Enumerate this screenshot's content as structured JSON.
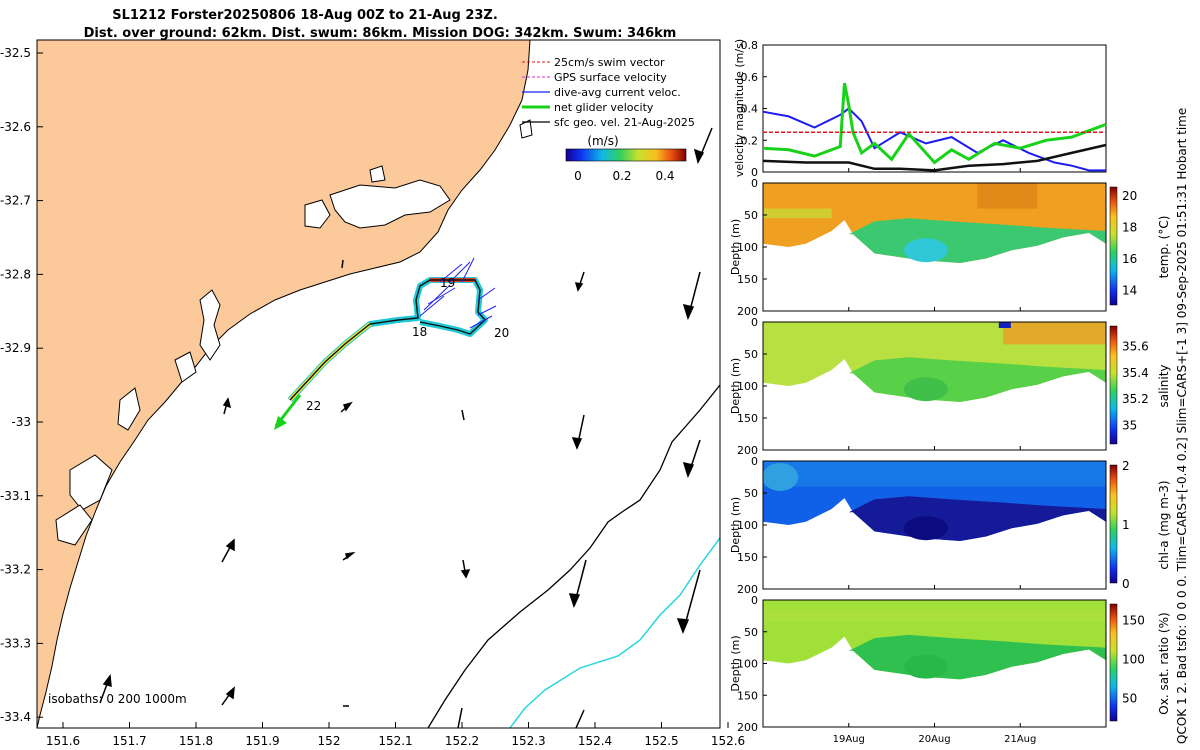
{
  "title": {
    "line1": "SL1212 Forster20250806 18-Aug 00Z to 21-Aug 23Z.",
    "line2": "Dist. over ground: 62km. Dist. swum: 86km. Mission DOG: 342km. Swum: 346km"
  },
  "side_text": "QCOK 1  2. Bad tsfo: 0  0  0  0. Tlim=CARS+[-0.4 0.2] Slim=CARS+[-1 3] 09-Sep-2025 01:51:31 Hobart time",
  "colors": {
    "land": "#fbc99a",
    "coast": "#000000",
    "track_outline": "#21c9d6",
    "track_line": "#000000",
    "arrow": "#000000"
  },
  "map": {
    "x_ticks": [
      "151.6",
      "151.7",
      "151.8",
      "151.9",
      "152",
      "152.1",
      "152.2",
      "152.3",
      "152.4",
      "152.5",
      "152.6"
    ],
    "y_ticks": [
      "-32.5",
      "-32.6",
      "-32.7",
      "-32.8",
      "-32.9",
      "-33",
      "-33.1",
      "-33.2",
      "-33.3",
      "-33.4"
    ],
    "legend": [
      {
        "label": "25cm/s swim vector",
        "color": "#e8121a"
      },
      {
        "label": "GPS surface velocity",
        "color": "#e52ad6"
      },
      {
        "label": "dive-avg current veloc.",
        "color": "#1d1df0"
      },
      {
        "label": "net glider velocity",
        "color": "#18d21a"
      },
      {
        "label": "sfc geo. vel. 21-Aug-2025",
        "color": "#000000"
      }
    ],
    "colorbar": {
      "title": "(m/s)",
      "ticks": [
        "0",
        "0.2",
        "0.4"
      ],
      "range": [
        0,
        0.55
      ]
    },
    "day_labels": [
      "18",
      "19",
      "20",
      "22"
    ],
    "isobath_label": "isobaths: 0   200  1000m"
  },
  "chart_data": [
    {
      "type": "line",
      "title": "",
      "ylabel": "velocity magnitude (m/s)",
      "ylim": [
        0,
        0.8
      ],
      "yticks": [
        "0",
        "0.2",
        "0.4",
        "0.6",
        "0.8"
      ],
      "x_day_start": 18,
      "series": [
        {
          "name": "dive-avg current",
          "color": "#1d1df0",
          "x": [
            18.0,
            18.3,
            18.6,
            18.9,
            19.0,
            19.15,
            19.3,
            19.6,
            19.9,
            20.2,
            20.5,
            20.8,
            21.1,
            21.4,
            21.6,
            21.8,
            22.0
          ],
          "values": [
            0.38,
            0.35,
            0.28,
            0.36,
            0.4,
            0.32,
            0.15,
            0.25,
            0.18,
            0.22,
            0.12,
            0.2,
            0.12,
            0.06,
            0.04,
            0.01,
            0.01
          ]
        },
        {
          "name": "net glider velocity",
          "color": "#18d21a",
          "x": [
            18.0,
            18.3,
            18.6,
            18.9,
            18.95,
            19.0,
            19.05,
            19.15,
            19.3,
            19.5,
            19.7,
            20.0,
            20.2,
            20.4,
            20.7,
            21.0,
            21.3,
            21.6,
            21.8,
            22.0
          ],
          "values": [
            0.15,
            0.14,
            0.1,
            0.16,
            0.56,
            0.42,
            0.25,
            0.12,
            0.18,
            0.08,
            0.24,
            0.06,
            0.14,
            0.08,
            0.18,
            0.15,
            0.2,
            0.22,
            0.26,
            0.3
          ]
        },
        {
          "name": "swim vector",
          "color": "#e8121a",
          "x": [
            18.0,
            22.0
          ],
          "values": [
            0.25,
            0.25
          ]
        },
        {
          "name": "sfc geo vel",
          "color": "#111111",
          "x": [
            18.0,
            18.5,
            19.0,
            19.3,
            19.6,
            20.0,
            20.4,
            20.8,
            21.2,
            21.6,
            22.0
          ],
          "values": [
            0.07,
            0.06,
            0.06,
            0.02,
            0.02,
            0.01,
            0.04,
            0.05,
            0.07,
            0.12,
            0.17
          ]
        }
      ]
    },
    {
      "type": "heatmap",
      "ylabel": "Depth (m)",
      "cblabel": "temp. (°C)",
      "ylim": [
        0,
        200
      ],
      "yticks": [
        "0",
        "50",
        "100",
        "150",
        "200"
      ],
      "cb_ticks": [
        "14",
        "16",
        "18",
        "20"
      ],
      "cb_range": [
        13,
        20.5
      ]
    },
    {
      "type": "heatmap",
      "ylabel": "Depth (m)",
      "cblabel": "salinity",
      "ylim": [
        0,
        200
      ],
      "yticks": [
        "0",
        "50",
        "100",
        "150",
        "200"
      ],
      "cb_ticks": [
        "35",
        "35.2",
        "35.4",
        "35.6"
      ],
      "cb_range": [
        34.85,
        35.75
      ]
    },
    {
      "type": "heatmap",
      "ylabel": "Depth (m)",
      "cblabel": "chl-a (mg m-3)",
      "ylim": [
        0,
        200
      ],
      "yticks": [
        "0",
        "50",
        "100",
        "150",
        "200"
      ],
      "cb_ticks": [
        "0",
        "1",
        "2"
      ],
      "cb_range": [
        0,
        2
      ]
    },
    {
      "type": "heatmap",
      "ylabel": "Depth (m)",
      "cblabel": "Ox. sat. ratio (%)",
      "ylim": [
        0,
        200
      ],
      "yticks": [
        "0",
        "50",
        "100",
        "150",
        "200"
      ],
      "cb_ticks": [
        "50",
        "100",
        "150"
      ],
      "cb_range": [
        20,
        170
      ]
    }
  ],
  "time_axis": {
    "ticks": [
      "19Aug",
      "20Aug",
      "21Aug"
    ],
    "start_day": 18,
    "end_day": 22
  }
}
